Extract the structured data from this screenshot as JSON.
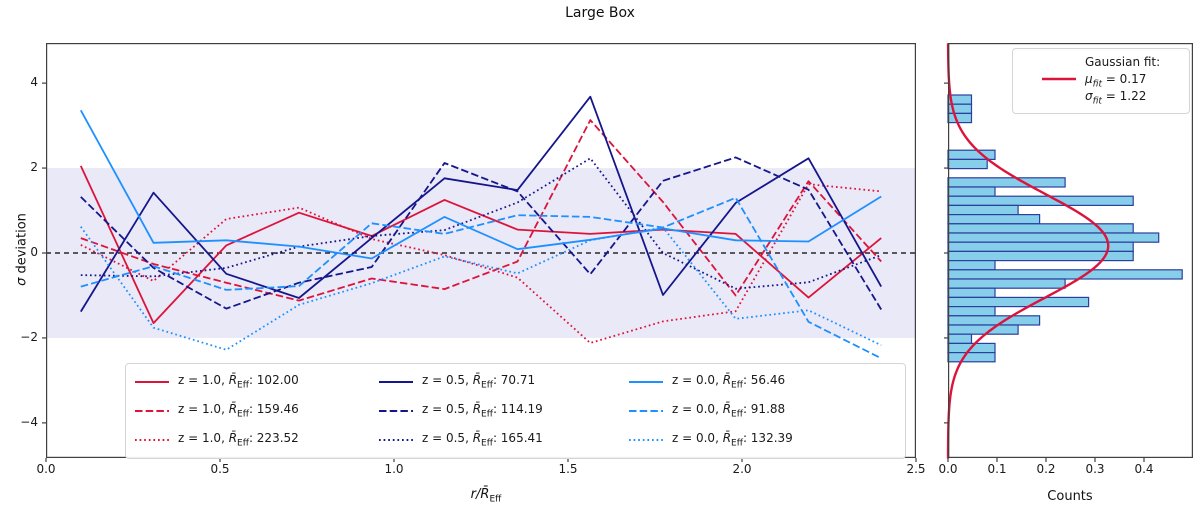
{
  "title": "Large Box",
  "colors": {
    "z10": "#dc143c",
    "z05": "#16168c",
    "z00": "#1e90ff",
    "hist_fill": "#87ceeb",
    "hist_edge": "#2b3f9e",
    "gauss_line": "#dc143c",
    "band": "#e9e9f7",
    "axis": "#404040",
    "zero_line": "#000000"
  },
  "main_plot": {
    "ylabel_sym": "σ",
    "ylabel_rest": " deviation",
    "xlabel_r": "r",
    "xlabel_slash": "/",
    "xlabel_R": "R̄",
    "xlabel_sub": "Eff",
    "x_ticks": [
      {
        "v": 0.0,
        "label": "0.0"
      },
      {
        "v": 0.5,
        "label": "0.5"
      },
      {
        "v": 1.0,
        "label": "1.0"
      },
      {
        "v": 1.5,
        "label": "1.5"
      },
      {
        "v": 2.0,
        "label": "2.0"
      },
      {
        "v": 2.5,
        "label": "2.5"
      }
    ],
    "y_ticks": [
      {
        "v": 4,
        "label": "4"
      },
      {
        "v": 2,
        "label": "2"
      },
      {
        "v": 0,
        "label": "0"
      },
      {
        "v": -2,
        "label": "−2"
      },
      {
        "v": -4,
        "label": "−4"
      }
    ]
  },
  "hist_panel": {
    "xlabel": "Counts",
    "x_ticks": [
      {
        "v": 0.0,
        "label": "0.0"
      },
      {
        "v": 0.1,
        "label": "0.1"
      },
      {
        "v": 0.2,
        "label": "0.2"
      },
      {
        "v": 0.3,
        "label": "0.3"
      },
      {
        "v": 0.4,
        "label": "0.4"
      }
    ],
    "y_tick_vals": [
      4,
      2,
      0,
      -2,
      -4
    ]
  },
  "gauss_legend": {
    "title": "Gaussian fit:",
    "mu_sym": "μ",
    "mu_sub": "fit",
    "mu_val": " = 0.17",
    "sigma_sym": "σ",
    "sigma_sub": "fit",
    "sigma_val": " = 1.22"
  },
  "chart_data": {
    "type": [
      "line",
      "bar"
    ],
    "line_plot": {
      "title": "Large Box",
      "xlabel": "r/R̄_Eff",
      "ylabel": "σ deviation",
      "xlim": [
        0,
        2.5
      ],
      "ylim": [
        -4.83,
        4.94
      ],
      "shaded_band": [
        -2,
        2
      ],
      "zero_line": 0,
      "x": [
        0.1,
        0.309,
        0.518,
        0.727,
        0.936,
        1.145,
        1.355,
        1.564,
        1.773,
        1.982,
        2.191,
        2.4
      ],
      "series": [
        {
          "z": "z = 1.0, ",
          "rsym": "R̄",
          "sub": "Eff",
          "val": ": 102.00",
          "color_key": "z10",
          "style": "solid",
          "y": [
            2.05,
            -1.65,
            0.18,
            0.95,
            0.4,
            1.25,
            0.55,
            0.45,
            0.55,
            0.45,
            -1.05,
            0.35
          ]
        },
        {
          "z": "z = 1.0, ",
          "rsym": "R̄",
          "sub": "Eff",
          "val": ": 159.46",
          "color_key": "z10",
          "style": "dashed",
          "y": [
            0.35,
            -0.26,
            -0.7,
            -1.12,
            -0.6,
            -0.85,
            -0.2,
            3.13,
            1.2,
            -1.0,
            1.69,
            -0.2
          ]
        },
        {
          "z": "z = 1.0, ",
          "rsym": "R̄",
          "sub": "Eff",
          "val": ": 223.52",
          "color_key": "z10",
          "style": "dotted",
          "y": [
            0.19,
            -0.66,
            0.8,
            1.07,
            0.33,
            -0.05,
            -0.58,
            -2.12,
            -1.61,
            -1.37,
            1.62,
            1.45
          ]
        },
        {
          "z": "z = 0.5, ",
          "rsym": "R̄",
          "sub": "Eff",
          "val": ": 70.71",
          "color_key": "z05",
          "style": "solid",
          "y": [
            -1.38,
            1.42,
            -0.49,
            -1.06,
            0.35,
            1.76,
            1.48,
            3.68,
            -0.99,
            1.18,
            2.23,
            -0.79
          ]
        },
        {
          "z": "z = 0.5, ",
          "rsym": "R̄",
          "sub": "Eff",
          "val": ": 114.19",
          "color_key": "z05",
          "style": "dashed",
          "y": [
            1.32,
            -0.35,
            -1.31,
            -0.7,
            -0.33,
            2.12,
            1.45,
            -0.5,
            1.7,
            2.25,
            1.49,
            -1.33
          ]
        },
        {
          "z": "z = 0.5, ",
          "rsym": "R̄",
          "sub": "Eff",
          "val": ": 165.41",
          "color_key": "z05",
          "style": "dotted",
          "y": [
            -0.52,
            -0.55,
            -0.35,
            0.15,
            0.4,
            0.54,
            1.19,
            2.23,
            0.0,
            -0.84,
            -0.69,
            -0.05
          ]
        },
        {
          "z": "z = 0.0, ",
          "rsym": "R̄",
          "sub": "Eff",
          "val": ": 56.46",
          "color_key": "z00",
          "style": "solid",
          "y": [
            3.36,
            0.24,
            0.3,
            0.15,
            -0.13,
            0.85,
            0.09,
            0.31,
            0.58,
            0.3,
            0.27,
            1.33
          ]
        },
        {
          "z": "z = 0.0, ",
          "rsym": "R̄",
          "sub": "Eff",
          "val": ": 91.88",
          "color_key": "z00",
          "style": "dashed",
          "y": [
            -0.79,
            -0.31,
            -0.87,
            -0.78,
            0.7,
            0.45,
            0.89,
            0.85,
            0.6,
            1.3,
            -1.62,
            -2.48
          ]
        },
        {
          "z": "z = 0.0, ",
          "rsym": "R̄",
          "sub": "Eff",
          "val": ": 132.39",
          "color_key": "z00",
          "style": "dotted",
          "y": [
            0.62,
            -1.76,
            -2.28,
            -1.22,
            -0.71,
            -0.08,
            -0.48,
            0.3,
            0.6,
            -1.55,
            -1.35,
            -2.17
          ]
        }
      ]
    },
    "histogram": {
      "orientation": "horizontal",
      "xlabel": "Counts",
      "xlim": [
        0,
        0.5
      ],
      "bin_top_sigma": 3.72,
      "bin_width_sigma": 0.2166,
      "densities": [
        0.048,
        0.048,
        0.048,
        0,
        0,
        0,
        0.096,
        0.08,
        0,
        0.239,
        0.096,
        0.378,
        0.143,
        0.187,
        0.378,
        0.43,
        0.378,
        0.378,
        0.096,
        0.478,
        0.239,
        0.096,
        0.287,
        0.096,
        0.187,
        0.143,
        0.048,
        0.096,
        0.096
      ]
    },
    "gaussian_fit": {
      "mu": 0.17,
      "sigma": 1.22,
      "peak": 0.327
    }
  }
}
